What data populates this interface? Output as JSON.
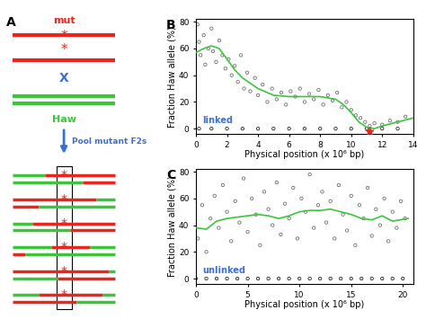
{
  "diagram": {
    "panel_label": "A",
    "parent1": {
      "text": "mut",
      "color": "#e8261f"
    },
    "mutation_mark": {
      "text": "*",
      "color": "#e8261f"
    },
    "cross": {
      "text": "X",
      "color": "#3b6fd4"
    },
    "parent2": {
      "text": "Haw",
      "color": "#3cc43c"
    },
    "arrow": {
      "text": "Pool mutant F2s",
      "color": "#3b6fd4"
    }
  },
  "chart_data": [
    {
      "type": "scatter",
      "panel_label": "B",
      "x_label": "Physical position (x 10⁶ bp)",
      "y_label": "Fraction Haw allele (%)",
      "annotations": [
        "linked"
      ],
      "annotation_color": "#3b6fd4",
      "xlim": [
        0,
        14
      ],
      "xticks": [
        0,
        2,
        4,
        6,
        8,
        10,
        12,
        14
      ],
      "ylim": [
        -4,
        82
      ],
      "yticks": [
        0,
        20,
        40,
        60,
        80
      ],
      "series": [
        {
          "type": "scatter",
          "marker": "o",
          "color": "#555555",
          "x": [
            0.1,
            0.2,
            0.3,
            0.5,
            0.6,
            0.8,
            1.0,
            1.1,
            1.3,
            1.5,
            1.7,
            1.9,
            2.1,
            2.3,
            2.5,
            2.7,
            2.9,
            3.1,
            3.3,
            3.5,
            3.8,
            4.0,
            4.3,
            4.6,
            4.9,
            5.2,
            5.5,
            5.8,
            6.1,
            6.4,
            6.7,
            7.0,
            7.3,
            7.6,
            7.9,
            8.2,
            8.5,
            8.8,
            9.1,
            9.4,
            9.7,
            10.0,
            10.3,
            10.6,
            10.9,
            11.2,
            11.5,
            12.0,
            12.5,
            13.0,
            13.5
          ],
          "values": [
            78,
            65,
            55,
            70,
            48,
            60,
            75,
            58,
            50,
            66,
            55,
            45,
            52,
            40,
            47,
            35,
            55,
            30,
            42,
            28,
            38,
            25,
            33,
            20,
            30,
            22,
            27,
            18,
            28,
            24,
            30,
            20,
            26,
            22,
            29,
            18,
            25,
            21,
            27,
            16,
            20,
            14,
            10,
            8,
            5,
            2,
            4,
            3,
            6,
            5,
            9
          ]
        },
        {
          "type": "scatter",
          "marker": "o",
          "color": "#000000",
          "x": [
            0.2,
            1,
            2,
            3,
            4,
            5,
            6,
            7,
            8,
            9,
            10,
            11,
            12,
            13
          ],
          "values": [
            0,
            0,
            0,
            0,
            0,
            0,
            0,
            0,
            0,
            0,
            0,
            0,
            0,
            0
          ]
        },
        {
          "type": "line",
          "color": "#3cc43c",
          "x": [
            0,
            0.5,
            1,
            1.5,
            2,
            2.5,
            3,
            4,
            5,
            6,
            7,
            8,
            9,
            9.5,
            10,
            10.5,
            11,
            11.5,
            12,
            13,
            14
          ],
          "values": [
            57,
            60,
            62,
            60,
            52,
            44,
            38,
            30,
            25,
            24,
            24,
            24,
            22,
            18,
            12,
            5,
            1,
            0,
            2,
            5,
            8
          ]
        },
        {
          "type": "scatter",
          "marker": "*",
          "color": "#e8261f",
          "x": [
            11.2
          ],
          "values": [
            -2
          ]
        }
      ]
    },
    {
      "type": "scatter",
      "panel_label": "C",
      "x_label": "Physical position (x 10⁶ bp)",
      "y_label": "Fraction Haw allele (%)",
      "annotations": [
        "unlinked"
      ],
      "annotation_color": "#3b6fd4",
      "xlim": [
        0,
        21
      ],
      "xticks": [
        0,
        5,
        10,
        15,
        20
      ],
      "ylim": [
        -4,
        82
      ],
      "yticks": [
        0,
        20,
        40,
        60,
        80
      ],
      "series": [
        {
          "type": "scatter",
          "marker": "o",
          "color": "#555555",
          "x": [
            0.2,
            0.6,
            1.0,
            1.4,
            1.8,
            2.2,
            2.6,
            3.0,
            3.4,
            3.8,
            4.2,
            4.6,
            5.0,
            5.4,
            5.8,
            6.2,
            6.6,
            7.0,
            7.4,
            7.8,
            8.2,
            8.6,
            9.0,
            9.4,
            9.8,
            10.2,
            10.6,
            11.0,
            11.4,
            11.8,
            12.2,
            12.6,
            13.0,
            13.4,
            13.8,
            14.2,
            14.6,
            15.0,
            15.4,
            15.8,
            16.2,
            16.6,
            17.0,
            17.4,
            17.8,
            18.2,
            18.6,
            19.0,
            19.4,
            19.8,
            20.2
          ],
          "values": [
            30,
            55,
            20,
            45,
            62,
            38,
            70,
            50,
            28,
            58,
            42,
            75,
            35,
            60,
            48,
            25,
            65,
            52,
            40,
            72,
            33,
            56,
            45,
            68,
            30,
            60,
            50,
            78,
            38,
            55,
            65,
            42,
            58,
            30,
            70,
            48,
            36,
            62,
            25,
            55,
            45,
            68,
            32,
            52,
            40,
            60,
            28,
            50,
            38,
            58,
            45
          ]
        },
        {
          "type": "scatter",
          "marker": "o",
          "color": "#000000",
          "x": [
            0,
            1,
            2,
            3,
            4,
            5,
            6,
            7,
            8,
            9,
            10,
            11,
            12,
            13,
            14,
            15,
            16,
            17,
            18,
            19,
            20
          ],
          "values": [
            0,
            0,
            0,
            0,
            0,
            0,
            0,
            0,
            0,
            0,
            0,
            0,
            0,
            0,
            0,
            0,
            0,
            0,
            0,
            0,
            0
          ]
        },
        {
          "type": "line",
          "color": "#3cc43c",
          "x": [
            0,
            1,
            2,
            3,
            4,
            5,
            6,
            7,
            8,
            9,
            10,
            11,
            12,
            13,
            14,
            15,
            16,
            17,
            18,
            19,
            20.5
          ],
          "values": [
            38,
            37,
            43,
            45,
            46,
            47,
            48,
            47,
            45,
            47,
            50,
            51,
            51,
            52,
            50,
            48,
            45,
            44,
            47,
            43,
            45
          ]
        }
      ]
    }
  ]
}
